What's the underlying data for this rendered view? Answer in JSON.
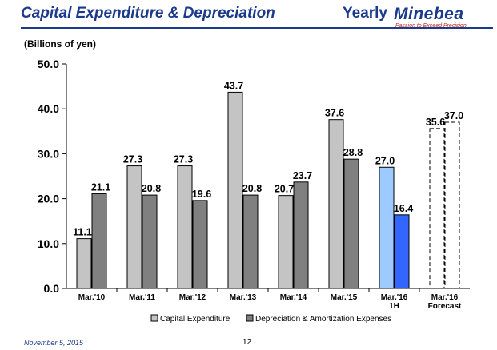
{
  "header": {
    "title": "Capital Expenditure & Depreciation",
    "period": "Yearly",
    "logo": "Minebea",
    "tagline": "Passion to Exceed Precision"
  },
  "footer": {
    "date": "November 5, 2015",
    "page": "12"
  },
  "colors": {
    "capex": "#c4c4c4",
    "depreciation": "#808080",
    "capex_1h": "#9dcbff",
    "depreciation_1h": "#3366ff",
    "forecast": "#ffffff",
    "brand": "#1b3a8c"
  },
  "chart_data": {
    "type": "bar",
    "title": "Capital Expenditure & Depreciation",
    "ylabel": "(Billions of yen)",
    "xlabel": "",
    "ylim": [
      0,
      50
    ],
    "yticks": [
      "0.0",
      "10.0",
      "20.0",
      "30.0",
      "40.0",
      "50.0"
    ],
    "categories": [
      [
        "Mar.'10"
      ],
      [
        "Mar.'11"
      ],
      [
        "Mar.'12"
      ],
      [
        "Mar.'13"
      ],
      [
        "Mar.'14"
      ],
      [
        "Mar.'15"
      ],
      [
        "Mar.'16",
        "1H"
      ],
      [
        "Mar.'16",
        "Forecast"
      ]
    ],
    "series": [
      {
        "name": "Capital Expenditure",
        "values": [
          11.1,
          27.3,
          27.3,
          43.7,
          20.7,
          37.6,
          27.0,
          35.6
        ],
        "labels": [
          "11.1",
          "27.3",
          "27.3",
          "43.7",
          "20.7",
          "37.6",
          "27.0",
          "35.6"
        ]
      },
      {
        "name": "Depreciation & Amortization Expenses",
        "values": [
          21.1,
          20.8,
          19.6,
          20.8,
          23.7,
          28.8,
          16.4,
          37.0
        ],
        "labels": [
          "21.1",
          "20.8",
          "19.6",
          "20.8",
          "23.7",
          "28.8",
          "16.4",
          "37.0"
        ]
      }
    ],
    "legend": "bottom"
  }
}
